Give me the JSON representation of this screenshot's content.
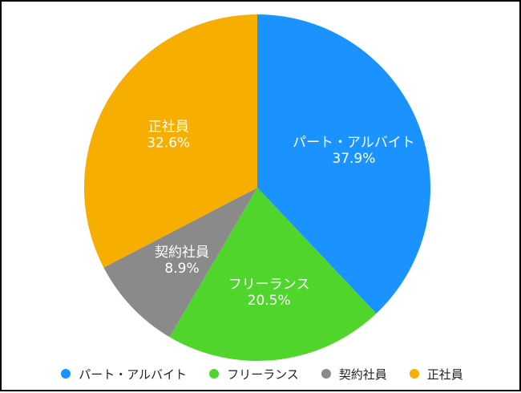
{
  "chart_data": {
    "type": "pie",
    "title": "",
    "slices": [
      {
        "label": "パート・アルバイト",
        "value": 37.9,
        "value_label": "37.9%",
        "color": "#1a93ff"
      },
      {
        "label": "フリーランス",
        "value": 20.5,
        "value_label": "20.5%",
        "color": "#4fd52c"
      },
      {
        "label": "契約社員",
        "value": 8.9,
        "value_label": "8.9%",
        "color": "#8a8a8a"
      },
      {
        "label": "正社員",
        "value": 32.6,
        "value_label": "32.6%",
        "color": "#f6ae00"
      }
    ],
    "start_angle_deg": 0,
    "direction": "clockwise",
    "legend_position": "bottom",
    "labels_inside": true
  }
}
